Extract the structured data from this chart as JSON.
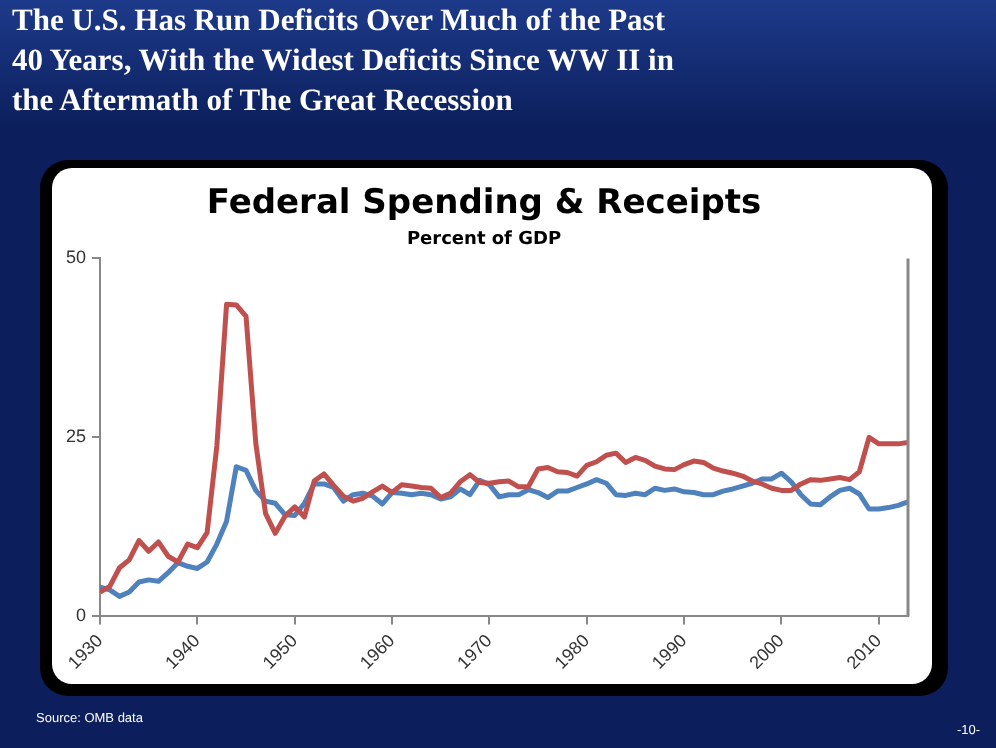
{
  "chart_data": {
    "type": "line",
    "title": "The U.S. Has Run Deficits Over Much of the Past 40 Years, With the Widest Deficits Since WW II in the Aftermath of The Great Recession",
    "subtitle": "Federal Spending & Receipts",
    "annotations": [
      "Percent of GDP",
      "Source: OMB data",
      "-10-"
    ],
    "x": [
      1930,
      1931,
      1932,
      1933,
      1934,
      1935,
      1936,
      1937,
      1938,
      1939,
      1940,
      1941,
      1942,
      1943,
      1944,
      1945,
      1946,
      1947,
      1948,
      1949,
      1950,
      1951,
      1952,
      1953,
      1954,
      1955,
      1956,
      1957,
      1958,
      1959,
      1960,
      1961,
      1962,
      1963,
      1964,
      1965,
      1966,
      1967,
      1968,
      1969,
      1970,
      1971,
      1972,
      1973,
      1974,
      1975,
      1976,
      1977,
      1978,
      1979,
      1980,
      1981,
      1982,
      1983,
      1984,
      1985,
      1986,
      1987,
      1988,
      1989,
      1990,
      1991,
      1992,
      1993,
      1994,
      1995,
      1996,
      1997,
      1998,
      1999,
      2000,
      2001,
      2002,
      2003,
      2004,
      2005,
      2006,
      2007,
      2008,
      2009,
      2010,
      2011,
      2012,
      2013
    ],
    "series": [
      {
        "color": "#c0504d",
        "values": [
          3.4,
          4.2,
          6.8,
          7.9,
          10.6,
          9.1,
          10.4,
          8.4,
          7.6,
          10.1,
          9.6,
          11.7,
          23.8,
          43.6,
          43.5,
          41.9,
          24.2,
          14.4,
          11.6,
          14.0,
          15.3,
          13.9,
          18.9,
          19.9,
          18.3,
          16.8,
          16.1,
          16.5,
          17.4,
          18.2,
          17.3,
          18.4,
          18.2,
          18.0,
          17.9,
          16.6,
          17.2,
          18.8,
          19.8,
          18.7,
          18.6,
          18.8,
          18.9,
          18.1,
          18.1,
          20.6,
          20.8,
          20.2,
          20.1,
          19.6,
          21.1,
          21.6,
          22.5,
          22.8,
          21.5,
          22.2,
          21.8,
          21.0,
          20.6,
          20.5,
          21.2,
          21.7,
          21.5,
          20.7,
          20.3,
          20.0,
          19.6,
          18.9,
          18.5,
          17.9,
          17.6,
          17.6,
          18.5,
          19.1,
          19.0,
          19.2,
          19.4,
          19.1,
          20.2,
          25.0,
          24.1,
          24.1,
          24.1,
          24.3
        ]
      },
      {
        "color": "#4f81bd",
        "values": [
          4.1,
          3.7,
          2.8,
          3.4,
          4.8,
          5.1,
          4.9,
          6.1,
          7.5,
          7.0,
          6.7,
          7.6,
          10.1,
          13.3,
          20.9,
          20.4,
          17.6,
          16.1,
          15.8,
          14.2,
          14.1,
          15.8,
          18.5,
          18.5,
          18.0,
          16.1,
          17.0,
          17.2,
          16.8,
          15.7,
          17.3,
          17.2,
          17.0,
          17.2,
          17.0,
          16.4,
          16.7,
          17.8,
          17.0,
          19.0,
          18.4,
          16.7,
          17.0,
          17.0,
          17.7,
          17.3,
          16.6,
          17.5,
          17.5,
          18.0,
          18.5,
          19.1,
          18.6,
          17.0,
          16.9,
          17.2,
          17.0,
          17.9,
          17.6,
          17.8,
          17.4,
          17.3,
          17.0,
          17.0,
          17.5,
          17.8,
          18.2,
          18.6,
          19.2,
          19.2,
          20.0,
          18.8,
          17.0,
          15.7,
          15.6,
          16.7,
          17.6,
          17.9,
          17.1,
          15.0,
          15.0,
          15.2,
          15.5,
          16.0
        ]
      }
    ],
    "xlim": [
      1930,
      2013
    ],
    "xticks": [
      1930,
      1940,
      1950,
      1960,
      1970,
      1980,
      1990,
      2000,
      2010
    ],
    "ylim": [
      0,
      50
    ],
    "yticks": [
      0,
      25,
      50
    ],
    "grid": false,
    "legend": false,
    "marker": "none",
    "line_style": "solid"
  }
}
